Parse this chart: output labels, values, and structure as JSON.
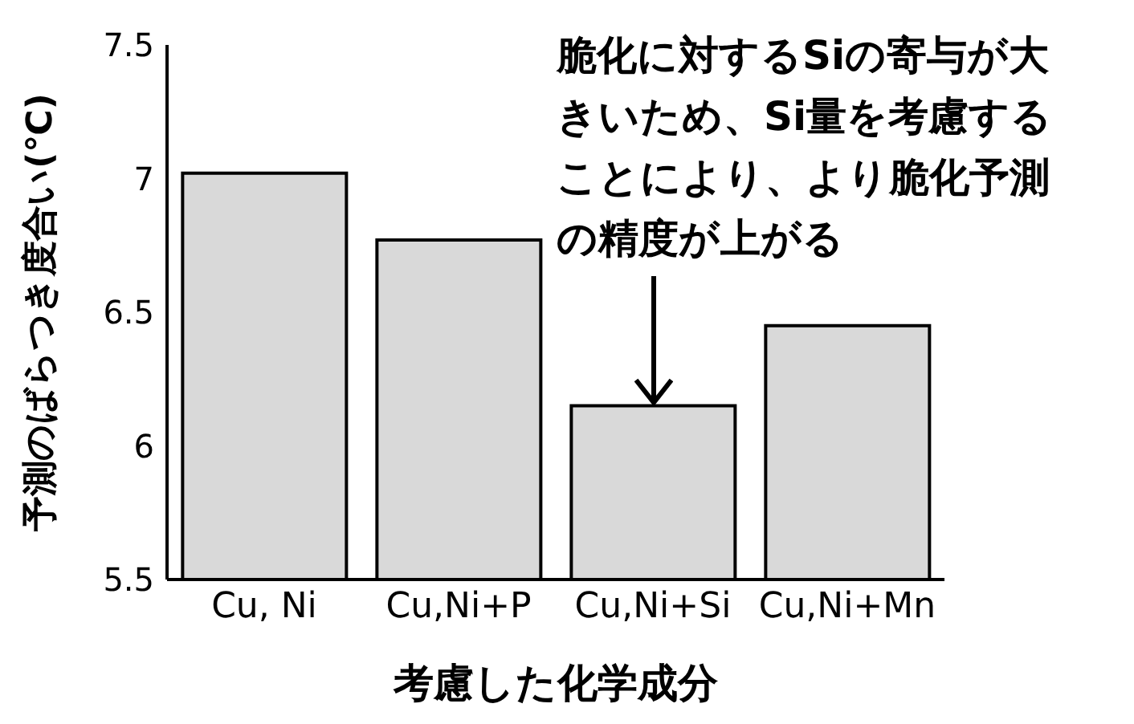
{
  "chart_data": {
    "type": "bar",
    "categories": [
      "Cu, Ni",
      "Cu,Ni+P",
      "Cu,Ni+Si",
      "Cu,Ni+Mn"
    ],
    "values": [
      7.02,
      6.77,
      6.15,
      6.45
    ],
    "color": "#d9d9d9",
    "xlabel": "考慮した化学成分",
    "ylabel": "予測のばらつき度合い(℃)",
    "ylim": [
      5.5,
      7.5
    ],
    "yticks": [
      5.5,
      6,
      6.5,
      7,
      7.5
    ],
    "grid": false,
    "legend": false,
    "annotations": [
      {
        "text": "脆化に対するSiの寄与が大きいため、Si量を考慮することにより、より脆化予測の精度が上がる",
        "x": "Cu,Ni+Si",
        "y": 6.15
      }
    ]
  }
}
